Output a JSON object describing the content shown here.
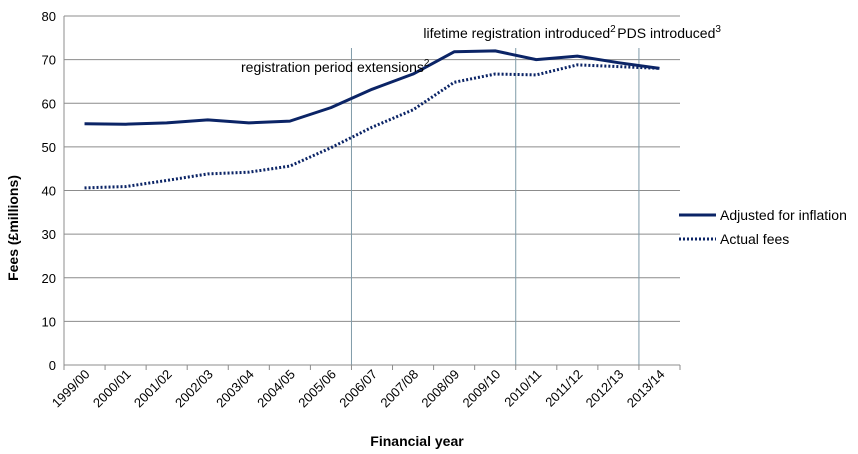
{
  "chart_data": {
    "type": "line",
    "title": "",
    "xlabel": "Financial year",
    "ylabel": "Fees (£millions)",
    "ylim": [
      0,
      80
    ],
    "yticks": [
      0,
      10,
      20,
      30,
      40,
      50,
      60,
      70,
      80
    ],
    "grid": "horizontal",
    "legend": "right",
    "categories": [
      "1999/00",
      "2000/01",
      "2001/02",
      "2002/03",
      "2003/04",
      "2004/05",
      "2005/06",
      "2006/07",
      "2007/08",
      "2008/09",
      "2009/10",
      "2010/11",
      "2011/12",
      "2012/13",
      "2013/14"
    ],
    "series": [
      {
        "name": "Adjusted for inflation",
        "style": "solid",
        "color": "#0b2466",
        "values": [
          55.3,
          55.2,
          55.5,
          56.2,
          55.5,
          55.9,
          59.0,
          63.2,
          66.7,
          71.8,
          72.0,
          70.0,
          70.8,
          69.3,
          68.0
        ]
      },
      {
        "name": "Actual fees",
        "style": "dotted",
        "color": "#0b2466",
        "values": [
          40.6,
          40.9,
          42.3,
          43.8,
          44.2,
          45.6,
          49.8,
          54.5,
          58.5,
          64.8,
          66.7,
          66.5,
          68.8,
          68.4,
          68.0
        ]
      }
    ],
    "annotations": [
      {
        "text": "registration  period extensions",
        "sup": "2",
        "category": "2006/07"
      },
      {
        "text": "lifetime registration introduced",
        "sup": "2",
        "category": "2010/11"
      },
      {
        "text": "PDS introduced",
        "sup": "3",
        "category": "2013/14"
      }
    ]
  }
}
